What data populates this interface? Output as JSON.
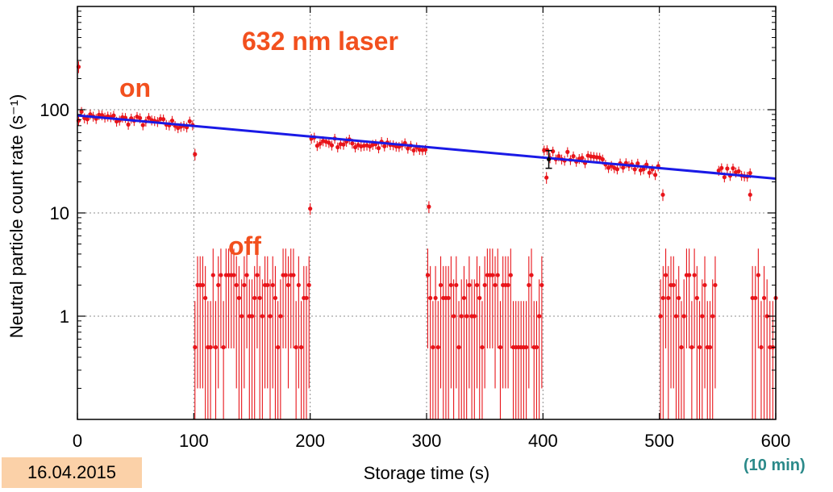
{
  "date_label": "16.04.2015",
  "duration_label": "(10 min)",
  "chart_data": {
    "type": "scatter",
    "title": "",
    "xlabel": "Storage time (s)",
    "ylabel": "Neutral particle count rate (s⁻¹)",
    "xlim": [
      0,
      600
    ],
    "ylim": [
      0.1,
      1000
    ],
    "yscale": "log",
    "grid": true,
    "x_ticks": [
      "0",
      "100",
      "200",
      "300",
      "400",
      "500",
      "600"
    ],
    "y_ticks": [
      "1",
      "10",
      "100"
    ],
    "annotations": [
      "632 nm laser",
      "on",
      "off"
    ],
    "colors": {
      "data": "#e8141a",
      "fit": "#1a1ae6",
      "annotation": "#f2501e",
      "highlight": "#000000"
    },
    "outlier_points": [
      {
        "x": 1,
        "y": 260
      },
      {
        "x": 101,
        "y": 37
      },
      {
        "x": 200,
        "y": 11
      },
      {
        "x": 302,
        "y": 11.5
      },
      {
        "x": 403,
        "y": 22
      },
      {
        "x": 503,
        "y": 15
      },
      {
        "x": 578,
        "y": 15
      }
    ],
    "series": [
      {
        "role": "laser on",
        "segments": [
          {
            "x_start": 1,
            "x_end": 99,
            "y_start": 88,
            "y_end": 70,
            "n": 40
          },
          {
            "x_start": 201,
            "x_end": 299,
            "y_start": 50,
            "y_end": 42,
            "n": 40
          },
          {
            "x_start": 401,
            "x_end": 499,
            "y_start": 38,
            "y_end": 26,
            "n": 40
          },
          {
            "x_start": 551,
            "x_end": 578,
            "y_start": 25,
            "y_end": 24,
            "n": 12
          }
        ]
      },
      {
        "role": "laser off",
        "levels": [
          0.5,
          1.0,
          1.5,
          2.0,
          2.5
        ],
        "segments": [
          {
            "x_start": 101,
            "x_end": 199,
            "n": 45
          },
          {
            "x_start": 301,
            "x_end": 399,
            "n": 45
          },
          {
            "x_start": 501,
            "x_end": 548,
            "n": 22
          },
          {
            "x_start": 580,
            "x_end": 600,
            "n": 9
          }
        ]
      },
      {
        "role": "exponential fit",
        "x": [
          0,
          600
        ],
        "y": [
          88,
          21.5
        ]
      }
    ],
    "highlight_point": {
      "x": 405,
      "y": 33
    }
  }
}
